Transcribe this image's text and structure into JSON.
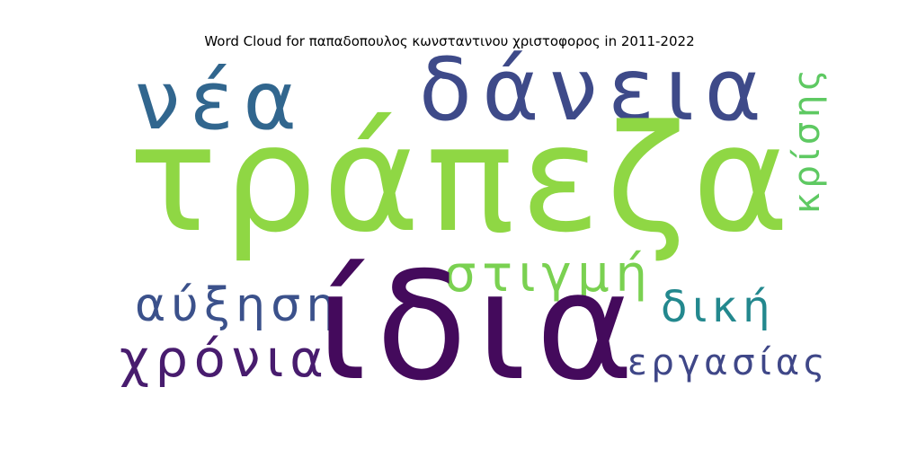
{
  "title": "Word Cloud for παπαδοπουλος κωνσταντινου χριστοφορος in 2011-2022",
  "words": {
    "trapeza": {
      "text": "τράπεζα",
      "color": "#8fd744"
    },
    "idia": {
      "text": "ίδια",
      "color": "#440a5c"
    },
    "daneia": {
      "text": "δάνεια",
      "color": "#3e4a89"
    },
    "nea": {
      "text": "νέα",
      "color": "#31668e"
    },
    "stigmi": {
      "text": "στιγμή",
      "color": "#7ad151"
    },
    "ayxisi": {
      "text": "αύξηση",
      "color": "#3b518b"
    },
    "xronia": {
      "text": "χρόνια",
      "color": "#481c6e"
    },
    "diki": {
      "text": "δική",
      "color": "#23888e"
    },
    "ergasias": {
      "text": "εργασίας",
      "color": "#3f4788"
    },
    "krisis": {
      "text": "κρίσης",
      "color": "#5ec962"
    }
  }
}
